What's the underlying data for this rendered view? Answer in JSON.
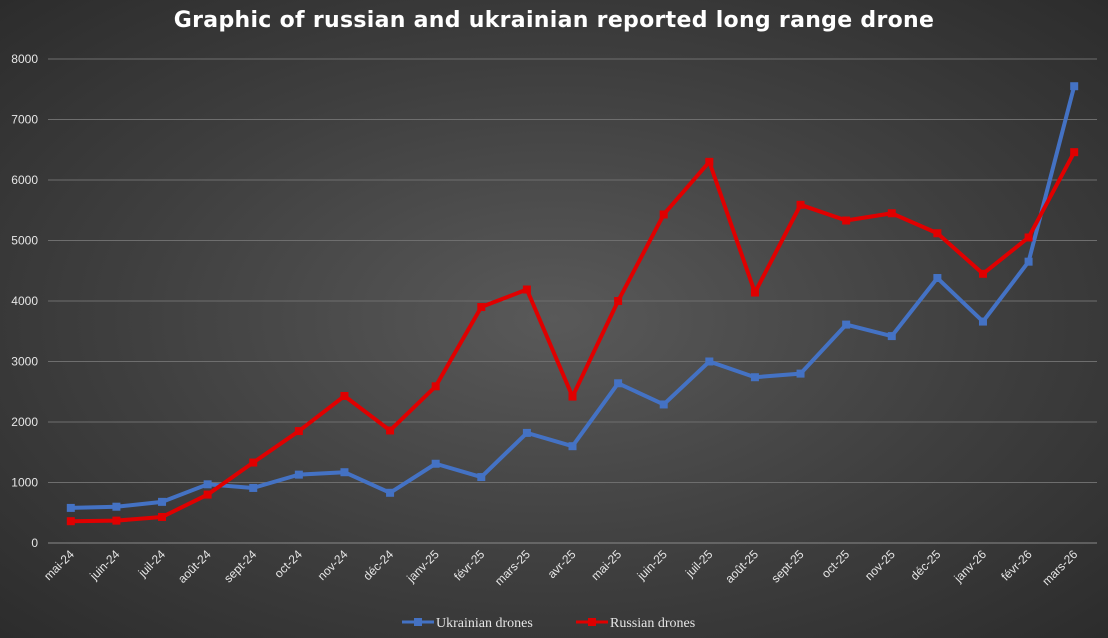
{
  "chart_data": {
    "type": "line",
    "title": "Graphic of russian and ukrainian reported long range drone",
    "xlabel": "",
    "ylabel": "",
    "ylim": [
      0,
      8000
    ],
    "yticks": [
      0,
      1000,
      2000,
      3000,
      4000,
      5000,
      6000,
      7000,
      8000
    ],
    "grid": "horizontal",
    "legend_position": "bottom",
    "categories": [
      "mai-24",
      "juin-24",
      "juil-24",
      "août-24",
      "sept-24",
      "oct-24",
      "nov-24",
      "déc-24",
      "janv-25",
      "févr-25",
      "mars-25",
      "avr-25",
      "mai-25",
      "juin-25",
      "juil-25",
      "août-25",
      "sept-25",
      "oct-25",
      "nov-25",
      "déc-25",
      "janv-26",
      "févr-26",
      "mars-26"
    ],
    "series": [
      {
        "name": "Ukrainian drones",
        "color": "#4472c4",
        "marker": "square",
        "values": [
          580,
          600,
          680,
          970,
          910,
          1130,
          1170,
          830,
          1310,
          1090,
          1820,
          1600,
          2640,
          2290,
          3000,
          2740,
          2800,
          3610,
          3420,
          4380,
          3660,
          4650,
          7550
        ]
      },
      {
        "name": "Russian drones",
        "color": "#e00000",
        "marker": "square",
        "values": [
          360,
          370,
          430,
          800,
          1330,
          1850,
          2430,
          1860,
          2590,
          3900,
          4190,
          2420,
          4000,
          5430,
          6300,
          4140,
          5590,
          5330,
          5450,
          5120,
          4450,
          5050,
          6460
        ]
      }
    ]
  }
}
